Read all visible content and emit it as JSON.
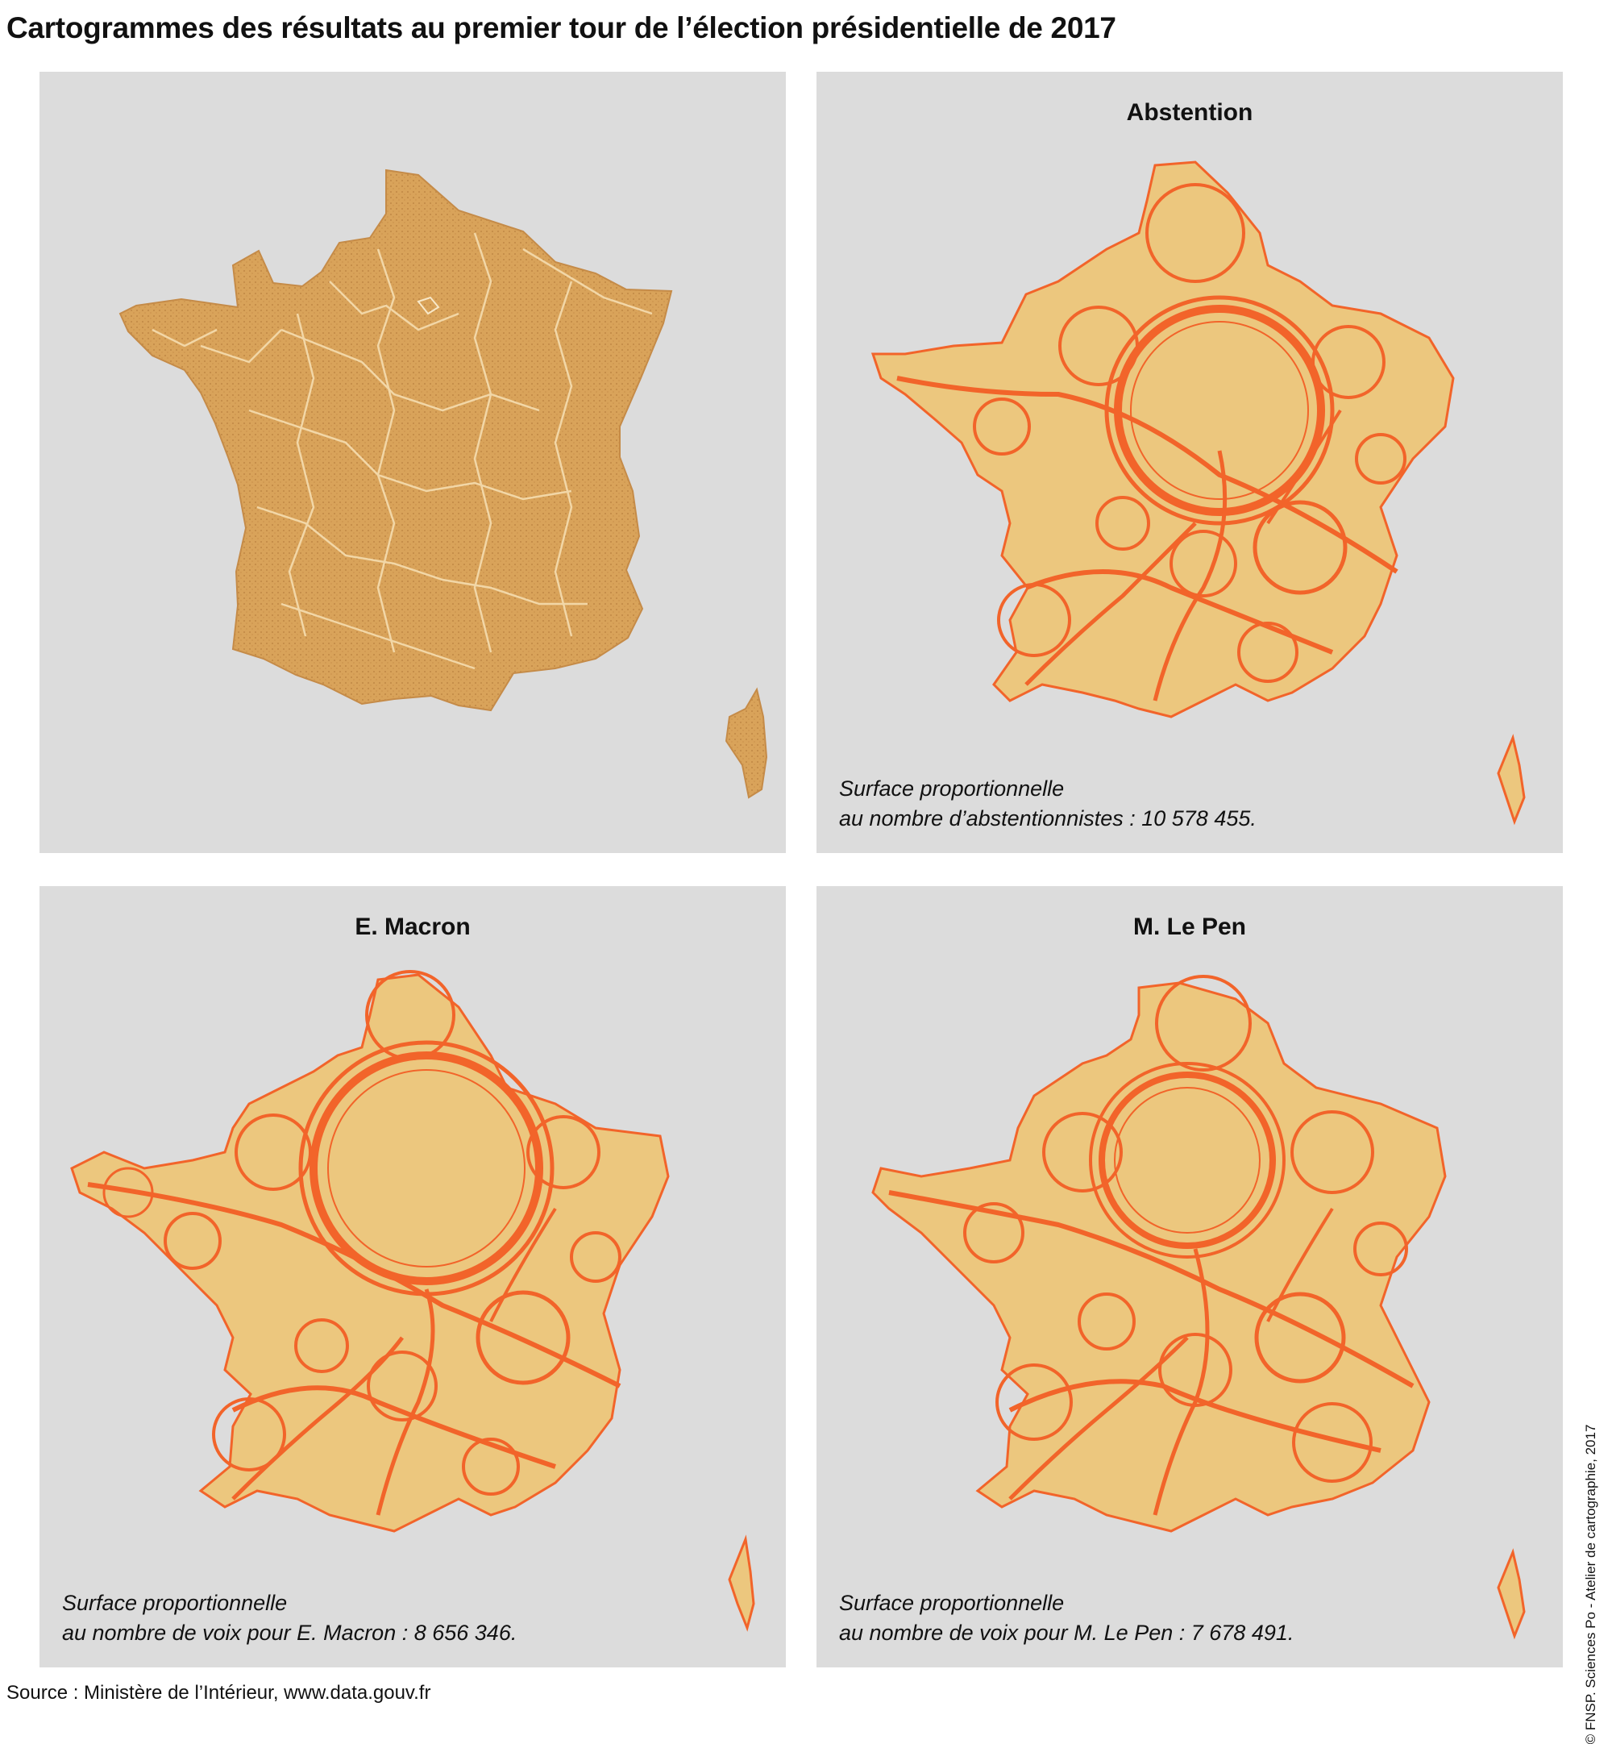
{
  "header": {
    "title": "Cartogrammes des résultats au premier tour de l’élection présidentielle de 2017"
  },
  "panels": [
    {
      "id": "reference",
      "title": "",
      "caption_line1": "",
      "caption_line2": ""
    },
    {
      "id": "abstention",
      "title": "Abstention",
      "caption_line1": "Surface proportionnelle",
      "caption_line2": "au nombre d’abstentionnistes : 10 578 455.",
      "total": 10578455
    },
    {
      "id": "macron",
      "title": "E. Macron",
      "caption_line1": "Surface proportionnelle",
      "caption_line2": "au nombre de voix pour E. Macron : 8 656 346.",
      "total": 8656346
    },
    {
      "id": "lepen",
      "title": "M. Le Pen",
      "caption_line1": "Surface proportionnelle",
      "caption_line2": "au nombre de voix pour M. Le Pen : 7 678 491.",
      "total": 7678491
    }
  ],
  "footer": {
    "source": "Source : Ministère de l’Intérieur, www.data.gouv.fr",
    "credit": "© FNSP. Sciences Po - Atelier de cartographie, 2017"
  },
  "colors": {
    "panel_background": "#dcdcdc",
    "reference_fill": "#d9a35a",
    "reference_borders": "#f5ddb0",
    "cartogram_fill": "#ecc77e",
    "cartogram_lines": "#f2642a"
  }
}
